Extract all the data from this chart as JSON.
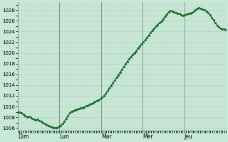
{
  "background_color": "#c8e8d8",
  "grid_color_major": "#b0d4c0",
  "grid_color_minor": "#c0dcc8",
  "line_color": "#1a6e2a",
  "line_width": 1.0,
  "marker_size": 1.2,
  "ylim": [
    1005.5,
    1029.5
  ],
  "yticks": [
    1006,
    1008,
    1010,
    1012,
    1014,
    1016,
    1018,
    1020,
    1022,
    1024,
    1026,
    1028
  ],
  "day_labels": [
    "Dim",
    "Lun",
    "Mar",
    "Mer",
    "Jeu"
  ],
  "day_positions": [
    0,
    24,
    48,
    72,
    96
  ],
  "total_hours": 120,
  "pressure_data": [
    1009.0,
    1009.0,
    1008.8,
    1008.5,
    1008.3,
    1008.0,
    1008.1,
    1008.0,
    1007.8,
    1007.6,
    1007.5,
    1007.6,
    1007.4,
    1007.2,
    1007.0,
    1006.8,
    1006.6,
    1006.5,
    1006.3,
    1006.2,
    1006.1,
    1006.0,
    1006.1,
    1006.3,
    1006.5,
    1006.8,
    1007.2,
    1007.8,
    1008.3,
    1008.8,
    1009.1,
    1009.2,
    1009.4,
    1009.5,
    1009.6,
    1009.7,
    1009.8,
    1009.9,
    1010.1,
    1010.2,
    1010.4,
    1010.5,
    1010.7,
    1010.9,
    1011.1,
    1011.2,
    1011.4,
    1011.7,
    1012.0,
    1012.4,
    1012.9,
    1013.4,
    1013.9,
    1014.4,
    1014.9,
    1015.4,
    1015.9,
    1016.4,
    1016.9,
    1017.4,
    1017.9,
    1018.4,
    1018.9,
    1019.3,
    1019.7,
    1020.0,
    1020.4,
    1020.9,
    1021.3,
    1021.7,
    1022.0,
    1022.4,
    1022.9,
    1023.3,
    1023.8,
    1024.2,
    1024.6,
    1025.0,
    1025.3,
    1025.6,
    1025.9,
    1026.3,
    1026.8,
    1027.2,
    1027.6,
    1027.9,
    1027.8,
    1027.6,
    1027.5,
    1027.4,
    1027.3,
    1027.1,
    1027.0,
    1027.1,
    1027.2,
    1027.3,
    1027.4,
    1027.5,
    1027.7,
    1028.0,
    1028.3,
    1028.4,
    1028.3,
    1028.1,
    1028.0,
    1027.8,
    1027.5,
    1027.1,
    1026.6,
    1026.1,
    1025.6,
    1025.1,
    1024.8,
    1024.6,
    1024.5,
    1024.4,
    1024.3
  ]
}
